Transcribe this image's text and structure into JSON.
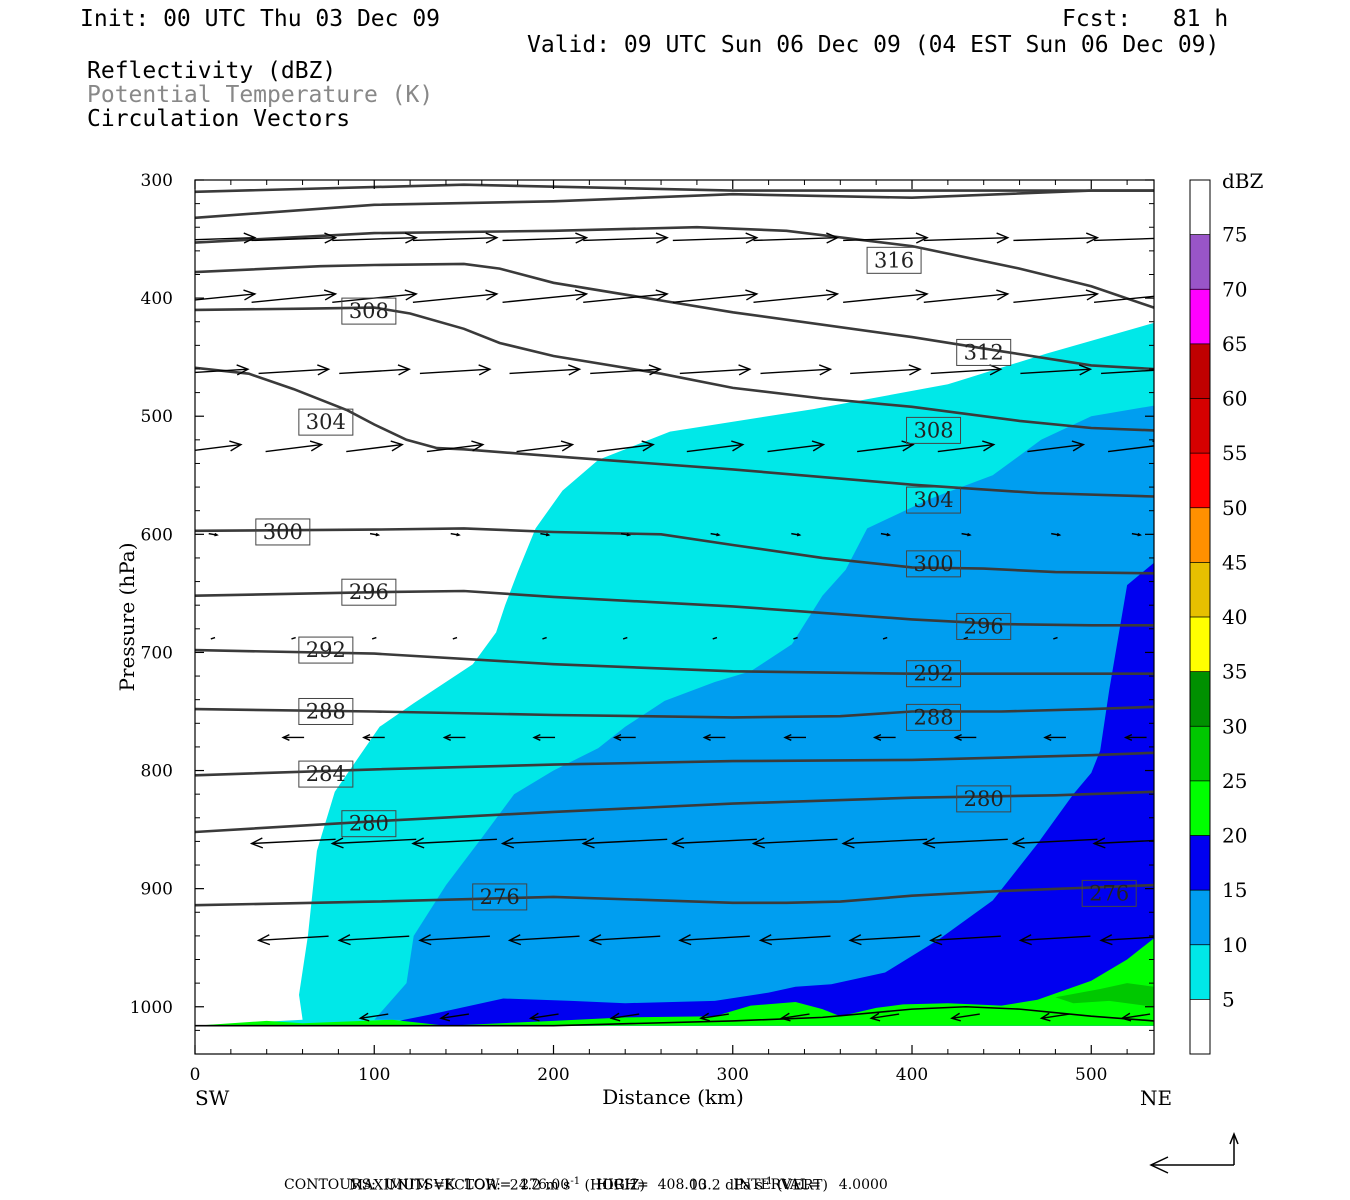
{
  "header": {
    "init": "Init: 00 UTC Thu 03 Dec 09",
    "fcst": "Fcst:   81 h",
    "valid": "Valid: 09 UTC Sun 06 Dec 09 (04 EST Sun 06 Dec 09)",
    "field1": "Reflectivity (dBZ)",
    "field2": "Potential Temperature (K)",
    "field3": "Circulation Vectors",
    "field2_color": "#888888"
  },
  "footer": {
    "max_vector_label": "MAXIMUM VECTOR:",
    "max_vector_horiz_value": "24.2 m s",
    "max_vector_horiz_sup": "-1",
    "max_vector_horiz_tag": "(HORIZ)",
    "max_vector_vert_value": "13.2 dPa s",
    "max_vector_vert_sup": "-1",
    "max_vector_vert_tag": "(VERT)",
    "contours": "CONTOURS:  UNITS=K  LOW=  276.00      HIGH=  408.00      INTERVAL=    4.0000"
  },
  "chart_data": {
    "type": "cross-section",
    "xlabel": "Distance (km)",
    "ylabel": "Pressure (hPa)",
    "x_left_end": "SW",
    "x_right_end": "NE",
    "xlim": [
      0,
      535
    ],
    "ylim": [
      1040,
      300
    ],
    "x_ticks": [
      0,
      100,
      200,
      300,
      400,
      500
    ],
    "y_ticks": [
      300,
      400,
      500,
      600,
      700,
      800,
      900,
      1000
    ],
    "colorbar": {
      "unit": "dBZ",
      "levels": [
        5,
        10,
        15,
        20,
        25,
        30,
        35,
        40,
        45,
        50,
        55,
        60,
        65,
        70,
        75
      ],
      "colors": [
        "#ffffff",
        "#00e8e8",
        "#009ef0",
        "#0000f0",
        "#00ff00",
        "#00c800",
        "#009000",
        "#ffff00",
        "#e7c000",
        "#ff9000",
        "#ff0000",
        "#d60000",
        "#c00000",
        "#ff00ff",
        "#9955c8",
        "#ffffff"
      ]
    },
    "reflectivity_regions": [
      {
        "dbz": 5,
        "color": "#00e8e8",
        "points": [
          [
            0,
            1016
          ],
          [
            60,
            1011
          ],
          [
            58,
            990
          ],
          [
            63,
            940
          ],
          [
            68,
            868
          ],
          [
            78,
            818
          ],
          [
            103,
            763
          ],
          [
            122,
            743
          ],
          [
            155,
            710
          ],
          [
            168,
            683
          ],
          [
            173,
            660
          ],
          [
            180,
            632
          ],
          [
            190,
            595
          ],
          [
            205,
            563
          ],
          [
            225,
            537
          ],
          [
            265,
            513
          ],
          [
            345,
            494
          ],
          [
            420,
            473
          ],
          [
            475,
            447
          ],
          [
            535,
            421
          ],
          [
            535,
            1016
          ]
        ]
      },
      {
        "dbz": 10,
        "color": "#009ef0",
        "points": [
          [
            100,
            1011
          ],
          [
            118,
            980
          ],
          [
            122,
            940
          ],
          [
            140,
            897
          ],
          [
            160,
            857
          ],
          [
            178,
            820
          ],
          [
            200,
            800
          ],
          [
            225,
            781
          ],
          [
            240,
            763
          ],
          [
            262,
            741
          ],
          [
            290,
            725
          ],
          [
            310,
            716
          ],
          [
            333,
            693
          ],
          [
            350,
            652
          ],
          [
            363,
            630
          ],
          [
            375,
            595
          ],
          [
            410,
            570
          ],
          [
            445,
            550
          ],
          [
            472,
            520
          ],
          [
            500,
            500
          ],
          [
            535,
            491
          ],
          [
            535,
            1016
          ]
        ]
      },
      {
        "dbz": 15,
        "color": "#0000f0",
        "points": [
          [
            0,
            1016
          ],
          [
            100,
            1016
          ],
          [
            130,
            1007
          ],
          [
            172,
            993
          ],
          [
            210,
            995
          ],
          [
            240,
            997
          ],
          [
            290,
            995
          ],
          [
            320,
            988
          ],
          [
            335,
            983
          ],
          [
            355,
            981
          ],
          [
            385,
            971
          ],
          [
            415,
            943
          ],
          [
            445,
            910
          ],
          [
            470,
            862
          ],
          [
            490,
            820
          ],
          [
            500,
            802
          ],
          [
            505,
            783
          ],
          [
            510,
            732
          ],
          [
            520,
            643
          ],
          [
            535,
            624
          ],
          [
            535,
            1016
          ]
        ]
      },
      {
        "dbz": 20,
        "color": "#00ff00",
        "points": [
          [
            0,
            1016
          ],
          [
            40,
            1012
          ],
          [
            60,
            1014
          ],
          [
            110,
            1011
          ],
          [
            140,
            1016
          ],
          [
            200,
            1012
          ],
          [
            240,
            1009
          ],
          [
            290,
            1008
          ],
          [
            310,
            999
          ],
          [
            335,
            996
          ],
          [
            350,
            1002
          ],
          [
            360,
            1008
          ],
          [
            380,
            1001
          ],
          [
            395,
            998
          ],
          [
            420,
            997
          ],
          [
            450,
            999
          ],
          [
            470,
            994
          ],
          [
            500,
            978
          ],
          [
            520,
            960
          ],
          [
            535,
            942
          ],
          [
            535,
            1016
          ]
        ]
      },
      {
        "dbz": 25,
        "color": "#00c800",
        "points": [
          [
            480,
            992
          ],
          [
            505,
            985
          ],
          [
            520,
            980
          ],
          [
            535,
            983
          ],
          [
            535,
            1000
          ],
          [
            510,
            995
          ],
          [
            490,
            997
          ]
        ]
      }
    ],
    "theta_contours": [
      {
        "value": 276,
        "points": [
          [
            0,
            914
          ],
          [
            100,
            911
          ],
          [
            200,
            907
          ],
          [
            300,
            912
          ],
          [
            330,
            912
          ],
          [
            360,
            911
          ],
          [
            400,
            906
          ],
          [
            450,
            902
          ],
          [
            500,
            899
          ],
          [
            535,
            897
          ]
        ]
      },
      {
        "value": 280,
        "points": [
          [
            0,
            852
          ],
          [
            100,
            843
          ],
          [
            200,
            835
          ],
          [
            300,
            828
          ],
          [
            400,
            823
          ],
          [
            480,
            821
          ],
          [
            535,
            818
          ]
        ]
      },
      {
        "value": 284,
        "points": [
          [
            0,
            804
          ],
          [
            100,
            799
          ],
          [
            200,
            795
          ],
          [
            300,
            792
          ],
          [
            400,
            791
          ],
          [
            500,
            787
          ],
          [
            535,
            785
          ]
        ]
      },
      {
        "value": 288,
        "points": [
          [
            0,
            748
          ],
          [
            100,
            750
          ],
          [
            200,
            753
          ],
          [
            300,
            755
          ],
          [
            360,
            754
          ],
          [
            400,
            750
          ],
          [
            450,
            750
          ],
          [
            500,
            748
          ],
          [
            535,
            746
          ]
        ]
      },
      {
        "value": 292,
        "points": [
          [
            0,
            698
          ],
          [
            100,
            701
          ],
          [
            200,
            710
          ],
          [
            300,
            716
          ],
          [
            400,
            718
          ],
          [
            500,
            718
          ],
          [
            535,
            718
          ]
        ]
      },
      {
        "value": 296,
        "points": [
          [
            0,
            652
          ],
          [
            100,
            649
          ],
          [
            150,
            648
          ],
          [
            200,
            653
          ],
          [
            300,
            661
          ],
          [
            400,
            672
          ],
          [
            450,
            676
          ],
          [
            500,
            677
          ],
          [
            535,
            677
          ]
        ]
      },
      {
        "value": 300,
        "points": [
          [
            0,
            597
          ],
          [
            100,
            596
          ],
          [
            150,
            595
          ],
          [
            200,
            598
          ],
          [
            260,
            600
          ],
          [
            300,
            609
          ],
          [
            350,
            620
          ],
          [
            400,
            628
          ],
          [
            440,
            629
          ],
          [
            480,
            632
          ],
          [
            535,
            633
          ]
        ]
      },
      {
        "value": 304,
        "points": [
          [
            0,
            459
          ],
          [
            30,
            464
          ],
          [
            55,
            477
          ],
          [
            85,
            495
          ],
          [
            100,
            507
          ],
          [
            118,
            520
          ],
          [
            135,
            527
          ],
          [
            150,
            528
          ],
          [
            210,
            535
          ],
          [
            300,
            545
          ],
          [
            400,
            558
          ],
          [
            470,
            565
          ],
          [
            535,
            568
          ]
        ]
      },
      {
        "value": 308,
        "points": [
          [
            0,
            410
          ],
          [
            60,
            409
          ],
          [
            100,
            408
          ],
          [
            120,
            413
          ],
          [
            150,
            426
          ],
          [
            170,
            438
          ],
          [
            200,
            449
          ],
          [
            260,
            464
          ],
          [
            300,
            476
          ],
          [
            350,
            485
          ],
          [
            400,
            492
          ],
          [
            460,
            504
          ],
          [
            500,
            510
          ],
          [
            535,
            512
          ]
        ]
      },
      {
        "value": 312,
        "points": [
          [
            0,
            378
          ],
          [
            70,
            373
          ],
          [
            100,
            372
          ],
          [
            150,
            371
          ],
          [
            170,
            375
          ],
          [
            200,
            387
          ],
          [
            260,
            402
          ],
          [
            300,
            412
          ],
          [
            400,
            433
          ],
          [
            450,
            445
          ],
          [
            500,
            457
          ],
          [
            535,
            460
          ]
        ]
      },
      {
        "value": 316,
        "points": [
          [
            0,
            353
          ],
          [
            100,
            345
          ],
          [
            200,
            343
          ],
          [
            280,
            340
          ],
          [
            330,
            343
          ],
          [
            400,
            356
          ],
          [
            460,
            375
          ],
          [
            500,
            390
          ],
          [
            535,
            408
          ]
        ]
      },
      {
        "value": 320,
        "points": [
          [
            0,
            332
          ],
          [
            100,
            321
          ],
          [
            200,
            318
          ],
          [
            300,
            312
          ],
          [
            400,
            315
          ],
          [
            500,
            309
          ],
          [
            535,
            309
          ]
        ]
      },
      {
        "value": 324,
        "points": [
          [
            0,
            310
          ],
          [
            150,
            304
          ],
          [
            300,
            309
          ],
          [
            400,
            309
          ],
          [
            535,
            309
          ]
        ]
      }
    ],
    "contour_labels": [
      {
        "value": "316",
        "x": 390,
        "y": 368
      },
      {
        "value": "308",
        "x": 97,
        "y": 411
      },
      {
        "value": "312",
        "x": 440,
        "y": 446
      },
      {
        "value": "304",
        "x": 73,
        "y": 505
      },
      {
        "value": "308",
        "x": 412,
        "y": 512
      },
      {
        "value": "304",
        "x": 412,
        "y": 571
      },
      {
        "value": "300",
        "x": 49,
        "y": 598
      },
      {
        "value": "300",
        "x": 412,
        "y": 625
      },
      {
        "value": "296",
        "x": 97,
        "y": 649
      },
      {
        "value": "296",
        "x": 440,
        "y": 678
      },
      {
        "value": "292",
        "x": 73,
        "y": 698
      },
      {
        "value": "292",
        "x": 412,
        "y": 718
      },
      {
        "value": "288",
        "x": 73,
        "y": 750
      },
      {
        "value": "288",
        "x": 412,
        "y": 755
      },
      {
        "value": "284",
        "x": 73,
        "y": 803
      },
      {
        "value": "280",
        "x": 440,
        "y": 824
      },
      {
        "value": "280",
        "x": 97,
        "y": 845
      },
      {
        "value": "276",
        "x": 170,
        "y": 907
      },
      {
        "value": "276",
        "x": 510,
        "y": 904
      }
    ],
    "vector_rows": [
      {
        "p": 350,
        "u": 6,
        "w": -0.2,
        "xs": [
          10,
          55,
          100,
          145,
          195,
          240,
          290,
          335,
          385,
          430,
          480,
          525
        ]
      },
      {
        "p": 400,
        "u": 6,
        "w": -0.6,
        "xs": [
          10,
          55,
          100,
          145,
          195,
          240,
          290,
          335,
          385,
          430,
          480,
          525
        ]
      },
      {
        "p": 462,
        "u": 5,
        "w": -0.3,
        "xs": [
          10,
          55,
          100,
          145,
          195,
          240,
          290,
          335,
          385,
          430,
          480,
          525
        ]
      },
      {
        "p": 527,
        "u": 4,
        "w": -0.5,
        "xs": [
          10,
          55,
          100,
          145,
          195,
          240,
          290,
          335,
          385,
          430,
          480,
          525
        ]
      },
      {
        "p": 600,
        "u": 0.6,
        "w": 0.1,
        "xs": [
          10,
          100,
          145,
          195,
          240,
          290,
          335,
          385,
          430,
          480,
          525
        ]
      },
      {
        "p": 688,
        "u": -0.3,
        "w": 0.1,
        "xs": [
          10,
          55,
          100,
          145,
          195,
          240,
          290,
          335,
          385,
          430,
          480
        ]
      },
      {
        "p": 772,
        "u": -1.5,
        "w": 0,
        "xs": [
          55,
          100,
          145,
          195,
          240,
          290,
          335,
          385,
          430,
          480,
          525
        ]
      },
      {
        "p": 860,
        "u": -6,
        "w": 0.3,
        "xs": [
          55,
          100,
          145,
          195,
          240,
          290,
          335,
          385,
          430,
          480,
          525
        ]
      },
      {
        "p": 942,
        "u": -5,
        "w": 0.3,
        "xs": [
          55,
          100,
          145,
          195,
          240,
          290,
          335,
          385,
          430,
          480,
          525
        ]
      },
      {
        "p": 1008,
        "u": -2,
        "w": 0.3,
        "xs": [
          100,
          145,
          195,
          240,
          290,
          335,
          385,
          430,
          480,
          525
        ]
      }
    ]
  }
}
